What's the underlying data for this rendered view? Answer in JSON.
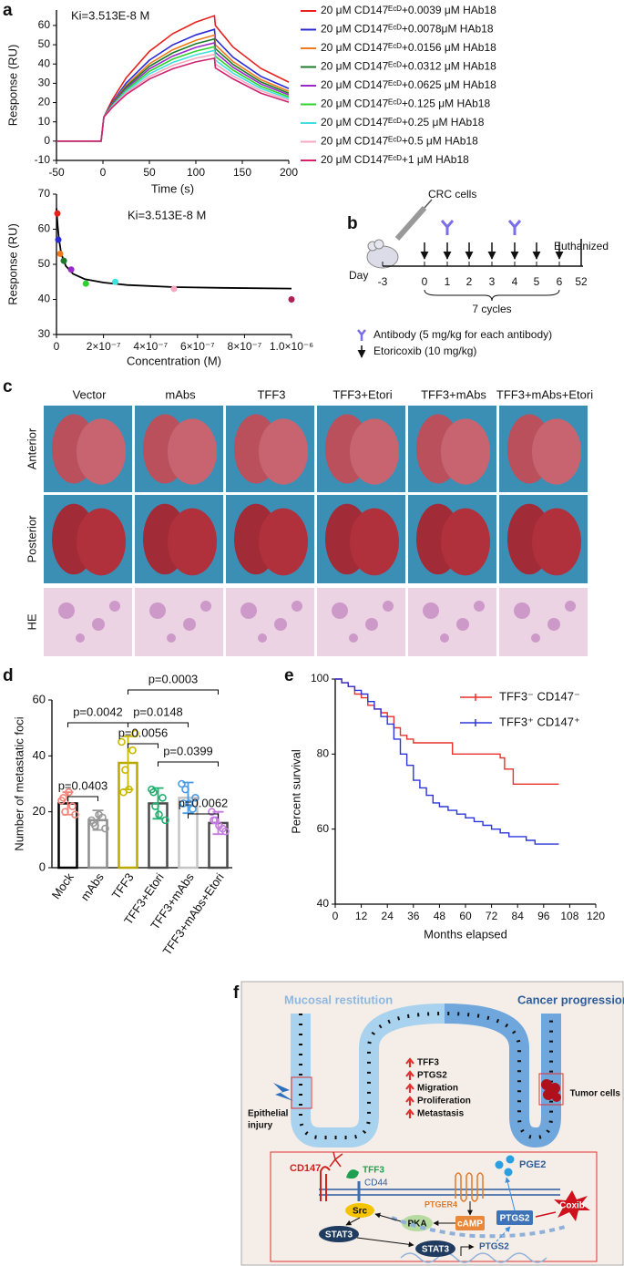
{
  "panel_labels": [
    "a",
    "b",
    "c",
    "d",
    "e",
    "f"
  ],
  "chart_data": [
    {
      "type": "line",
      "annotation": "Ki=3.513E-8 M",
      "x_label": "Time (s)",
      "y_label": "Response (RU)",
      "x": [
        -50,
        -2,
        1,
        10,
        25,
        50,
        75,
        100,
        120,
        121,
        140,
        170,
        200
      ],
      "xlim": [
        -50,
        200
      ],
      "xticks": [
        -50,
        0,
        50,
        100,
        150,
        200
      ],
      "ylim": [
        -10,
        68
      ],
      "yticks": [
        -10,
        0,
        10,
        20,
        30,
        40,
        50,
        60
      ],
      "series": [
        {
          "name": "20 μM CD147ᴱᶜᴰ+0.0039 μM HAb18",
          "color": "#e8201c",
          "values": [
            0,
            0,
            12.5,
            21.4,
            32.9,
            46.6,
            55.7,
            61.7,
            65,
            60,
            48.8,
            37.7,
            30.6
          ]
        },
        {
          "name": "20 μM CD147ᴱᶜᴰ+0.0078μM HAb18",
          "color": "#2b2bd6",
          "values": [
            0,
            0,
            12.5,
            20.1,
            30.1,
            42.0,
            49.9,
            55.1,
            58,
            53,
            43.5,
            33.6,
            27.3
          ]
        },
        {
          "name": "20 μM CD147ᴱᶜᴰ+0.0156 μM HAb18",
          "color": "#f07a1a",
          "values": [
            0,
            0,
            12.5,
            19.6,
            28.9,
            40.1,
            47.4,
            52.3,
            55,
            50,
            41.3,
            31.9,
            25.9
          ]
        },
        {
          "name": "20 μM CD147ᴱᶜᴰ+0.0312 μM HAb18",
          "color": "#1e7a2a",
          "values": [
            0,
            0,
            12.5,
            19.3,
            28.2,
            38.8,
            45.8,
            50.5,
            53,
            48,
            39.8,
            30.7,
            24.9
          ]
        },
        {
          "name": "20 μM CD147ᴱᶜᴰ+0.0625 μM HAb18",
          "color": "#9a28c8",
          "values": [
            0,
            0,
            12.5,
            18.9,
            27.4,
            37.5,
            44.1,
            48.6,
            51,
            46,
            38.3,
            29.6,
            24.0
          ]
        },
        {
          "name": "20 μM CD147ᴱᶜᴰ+0.125 μM HAb18",
          "color": "#2ed12e",
          "values": [
            0,
            0,
            12.5,
            18.5,
            26.6,
            36.2,
            42.5,
            46.7,
            49,
            44,
            36.8,
            28.4,
            23.0
          ]
        },
        {
          "name": "20 μM CD147ᴱᶜᴰ+0.25 μM HAb18",
          "color": "#3fe0e0",
          "values": [
            0,
            0,
            12.5,
            18.2,
            25.8,
            34.9,
            40.8,
            44.8,
            47,
            42,
            35.3,
            27.3,
            22.1
          ]
        },
        {
          "name": "20 μM CD147ᴱᶜᴰ+0.5 μM HAb18",
          "color": "#f5a8c0",
          "values": [
            0,
            0,
            12.5,
            17.8,
            25.0,
            33.5,
            39.2,
            43.0,
            45,
            40,
            33.8,
            26.1,
            21.2
          ]
        },
        {
          "name": "20 μM CD147ᴱᶜᴰ+1 μM HAb18",
          "color": "#d0226e",
          "values": [
            0,
            0,
            12.5,
            17.5,
            24.2,
            32.2,
            37.5,
            41.1,
            43,
            38,
            32.3,
            24.9,
            20.2
          ]
        }
      ]
    },
    {
      "type": "scatter",
      "annotation": "Ki=3.513E-8 M",
      "x_label": "Concentration (M)",
      "y_label": "Response (RU)",
      "x": [
        3.9e-09,
        7.8e-09,
        1.56e-08,
        3.12e-08,
        6.25e-08,
        1.25e-07,
        2.5e-07,
        5e-07,
        1e-06
      ],
      "values": [
        64.5,
        57,
        53,
        51,
        48.5,
        44.5,
        45,
        43,
        40
      ],
      "colors": [
        "#e8201c",
        "#2b2bd6",
        "#f07a1a",
        "#1e7a2a",
        "#9a28c8",
        "#2ed12e",
        "#3fe0e0",
        "#f5a8c0",
        "#b0205a"
      ],
      "fit": {
        "color": "#000000",
        "x": [
          0,
          5e-09,
          1e-08,
          2e-08,
          4e-08,
          7e-08,
          1.2e-07,
          2e-07,
          3e-07,
          5e-07,
          7e-07,
          1e-06
        ],
        "values": [
          66,
          61,
          57.5,
          53,
          49.5,
          47.3,
          45.8,
          44.8,
          44.1,
          43.5,
          43.3,
          43.1
        ]
      },
      "xlim": [
        0,
        1e-06
      ],
      "xticks": [
        0,
        {
          "value": 2e-07,
          "label": "2×10⁻⁷"
        },
        {
          "value": 4e-07,
          "label": "4×10⁻⁷"
        },
        {
          "value": 6e-07,
          "label": "6×10⁻⁷"
        },
        {
          "value": 8e-07,
          "label": "8×10⁻⁷"
        },
        {
          "value": 1e-06,
          "label": "1.0×10⁻⁶"
        }
      ],
      "ylim": [
        30,
        70
      ],
      "yticks": [
        30,
        40,
        50,
        60,
        70
      ]
    },
    {
      "type": "bar",
      "y_label": "Number of metastatic foci",
      "categories": [
        "Mock",
        "mAbs",
        "TFF3",
        "TFF3+Etori",
        "TFF3+mAbs",
        "TFF3+mAbs+Etori"
      ],
      "values": [
        23,
        17,
        37.5,
        23,
        25,
        16
      ],
      "errors": [
        4,
        3.5,
        9.5,
        5.5,
        5.5,
        4
      ],
      "colors": [
        "#000000",
        "#8c8c8c",
        "#b8a800",
        "#4a4a4a",
        "#c4c4c4",
        "#4a4a4a"
      ],
      "point_colors": [
        "#f0857a",
        "#9a9a9a",
        "#c9b800",
        "#1fb070",
        "#4a9be6",
        "#c57be0"
      ],
      "points": [
        [
          24,
          20,
          27,
          22,
          19,
          25
        ],
        [
          17,
          15,
          19,
          18,
          14,
          16
        ],
        [
          45,
          35,
          28,
          42,
          48,
          27
        ],
        [
          28,
          22,
          19,
          25,
          17,
          27
        ],
        [
          30,
          28,
          23,
          21,
          25,
          23
        ],
        [
          20,
          17,
          15,
          14,
          13,
          17
        ]
      ],
      "ylim": [
        0,
        60
      ],
      "yticks": [
        0,
        20,
        40,
        60
      ],
      "comparisons": [
        {
          "label": "p=0.0003",
          "groups": [
            2,
            5
          ]
        },
        {
          "label": "p=0.0042",
          "groups": [
            0,
            2
          ]
        },
        {
          "label": "p=0.0148",
          "groups": [
            2,
            4
          ]
        },
        {
          "label": "p=0.0056",
          "groups": [
            2,
            3
          ]
        },
        {
          "label": "p=0.0399",
          "groups": [
            3,
            5
          ]
        },
        {
          "label": "p=0.0403",
          "groups": [
            0,
            1
          ]
        },
        {
          "label": "p=0.0062",
          "groups": [
            4,
            5
          ]
        }
      ]
    },
    {
      "type": "step",
      "x_label": "Months elapsed",
      "y_label": "Percent survival",
      "xlim": [
        0,
        120
      ],
      "xticks": [
        0,
        12,
        24,
        36,
        48,
        60,
        72,
        84,
        96,
        108,
        120
      ],
      "ylim": [
        40,
        100
      ],
      "yticks": [
        40,
        60,
        80,
        100
      ],
      "series": [
        {
          "name": "TFF3⁻ CD147⁻",
          "color": "#e8322b",
          "x": [
            0,
            3,
            6,
            9,
            12,
            15,
            18,
            21,
            24,
            27,
            30,
            33,
            36,
            42,
            48,
            54,
            60,
            66,
            72,
            76,
            78,
            80,
            82,
            90,
            96,
            103
          ],
          "values": [
            100,
            99,
            98,
            96,
            95,
            93,
            92,
            91,
            90,
            87,
            85,
            84,
            83,
            83,
            83,
            80,
            80,
            80,
            80,
            79,
            76,
            76,
            72,
            72,
            72,
            72
          ]
        },
        {
          "name": "TFF3⁺ CD147⁺",
          "color": "#2c36d8",
          "x": [
            0,
            3,
            6,
            9,
            12,
            15,
            18,
            21,
            24,
            27,
            30,
            33,
            36,
            39,
            42,
            45,
            48,
            52,
            56,
            60,
            64,
            68,
            72,
            76,
            80,
            84,
            88,
            92,
            96,
            103
          ],
          "values": [
            100,
            99,
            98,
            97,
            96,
            94,
            92,
            90,
            88,
            84,
            80,
            77,
            73,
            71,
            69,
            67,
            66,
            65,
            64,
            63,
            62,
            61,
            60,
            59,
            58,
            58,
            57,
            56,
            56,
            56
          ]
        }
      ]
    }
  ],
  "timeline": {
    "cells": "CRC cells",
    "end": "Euthanized",
    "day_label": "Day",
    "days": [
      -3,
      0,
      1,
      2,
      3,
      4,
      5,
      6,
      52
    ],
    "cycles": "7 cycles",
    "legend": [
      "Antibody (5 mg/kg for each antibody)",
      "Etoricoxib (10 mg/kg)"
    ]
  },
  "photos": {
    "columns": [
      "Vector",
      "mAbs",
      "TFF3",
      "TFF3+Etori",
      "TFF3+mAbs",
      "TFF3+mAbs+Etori"
    ],
    "rows": [
      "Anterior",
      "Posterior",
      "HE"
    ]
  },
  "pathway": {
    "top_left": "Mucosal restitution",
    "top_right": "Cancer progression",
    "effects": [
      "TFF3",
      "PTGS2",
      "Migration",
      "Proliferation",
      "Metastasis"
    ],
    "injury": [
      "Epithelial",
      "injury"
    ],
    "tumor": "Tumor cells",
    "molecules": {
      "cd147": "CD147",
      "tff3": "TFF3",
      "cd44": "CD44",
      "pge2": "PGE2",
      "ptger4": "PTGER4",
      "src": "Src",
      "pka": "PKA",
      "camp": "cAMP",
      "ptgs2": "PTGS2",
      "coxib": "Coxib",
      "stat3": "STAT3",
      "stat3_nuclear": "STAT3",
      "ptgs2_gene": "PTGS2"
    }
  }
}
